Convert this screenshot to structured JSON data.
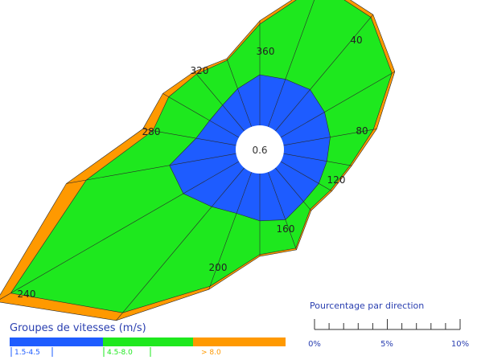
{
  "chart_data": {
    "type": "wind-rose",
    "calm_value": "0.6",
    "direction_labels": [
      "360",
      "40",
      "80",
      "120",
      "160",
      "200",
      "240",
      "280",
      "320"
    ],
    "sector_directions_deg": [
      0,
      20,
      40,
      60,
      80,
      100,
      120,
      140,
      160,
      180,
      200,
      220,
      240,
      260,
      280,
      300,
      320,
      340
    ],
    "series": [
      {
        "name": "1.5-4.5",
        "color": "#1e5cff",
        "cumulative_percent": [
          1.5,
          1.5,
          1.6,
          1.5,
          1.4,
          1.3,
          1.3,
          1.3,
          1.5,
          1.4,
          1.3,
          1.5,
          1.9,
          2.0,
          1.2,
          1.0,
          1.0,
          1.2
        ]
      },
      {
        "name": "4.5-8.0",
        "color": "#1ee81e",
        "cumulative_percent": [
          3.0,
          4.5,
          4.4,
          3.8,
          2.7,
          2.0,
          1.7,
          1.6,
          2.4,
          2.4,
          3.6,
          5.6,
          7.8,
          4.5,
          2.5,
          2.4,
          2.2,
          2.1
        ]
      },
      {
        "name": "> 8.0",
        "color": "#ff9900",
        "cumulative_percent": [
          3.1,
          4.6,
          4.5,
          3.9,
          2.8,
          2.05,
          1.75,
          1.65,
          2.45,
          2.45,
          3.7,
          5.9,
          8.3,
          5.1,
          2.8,
          2.6,
          2.3,
          2.15
        ]
      }
    ],
    "legend_title": "Groupes de vitesses (m/s)",
    "legend_entries": [
      "1.5-4.5",
      "4.5-8.0",
      "> 8.0"
    ],
    "scale": {
      "title": "Pourcentage par direction",
      "tick_labels": [
        "0%",
        "5%",
        "10%"
      ],
      "range_percent": [
        0,
        10
      ]
    }
  }
}
